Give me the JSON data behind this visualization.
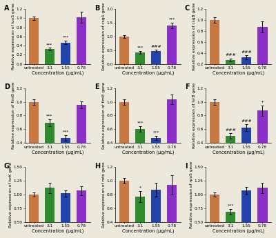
{
  "panels": [
    {
      "label": "A",
      "ylabel": "Relative expression of luxS gene",
      "ylim": [
        0,
        1.2
      ],
      "yticks": [
        0.0,
        0.2,
        0.4,
        0.6,
        0.8,
        1.0,
        1.2
      ],
      "values": [
        1.0,
        0.32,
        0.47,
        1.02
      ],
      "errors": [
        0.04,
        0.03,
        0.04,
        0.12
      ],
      "colors": [
        "#C87941",
        "#2E8B2E",
        "#2244AA",
        "#8B2FC8"
      ],
      "sig": [
        "",
        "***",
        "***",
        ""
      ],
      "sig_colors": [
        "k",
        "k",
        "k",
        "k"
      ]
    },
    {
      "label": "B",
      "ylabel": "Relative expression of csgA gene",
      "ylim": [
        0,
        2.0
      ],
      "yticks": [
        0.0,
        0.5,
        1.0,
        1.5,
        2.0
      ],
      "values": [
        1.0,
        0.42,
        0.48,
        1.4
      ],
      "errors": [
        0.05,
        0.04,
        0.04,
        0.1
      ],
      "colors": [
        "#C87941",
        "#2E8B2E",
        "#2244AA",
        "#8B2FC8"
      ],
      "sig": [
        "",
        "***",
        "###",
        "***"
      ],
      "sig_colors": [
        "k",
        "k",
        "k",
        "k"
      ]
    },
    {
      "label": "C",
      "ylabel": "Relative expression of csgB gene",
      "ylim": [
        0.2,
        1.2
      ],
      "yticks": [
        0.2,
        0.4,
        0.6,
        0.8,
        1.0,
        1.2
      ],
      "values": [
        1.0,
        0.27,
        0.32,
        0.88
      ],
      "errors": [
        0.05,
        0.03,
        0.04,
        0.1
      ],
      "colors": [
        "#C87941",
        "#2E8B2E",
        "#2244AA",
        "#8B2FC8"
      ],
      "sig": [
        "",
        "###",
        "###",
        ""
      ],
      "sig_colors": [
        "k",
        "k",
        "k",
        "k"
      ]
    },
    {
      "label": "D",
      "ylabel": "Relative expression of fimB gene",
      "ylim": [
        0.4,
        1.2
      ],
      "yticks": [
        0.4,
        0.6,
        0.8,
        1.0,
        1.2
      ],
      "values": [
        1.0,
        0.69,
        0.47,
        0.96
      ],
      "errors": [
        0.04,
        0.05,
        0.04,
        0.05
      ],
      "colors": [
        "#C87941",
        "#2E8B2E",
        "#2244AA",
        "#8B2FC8"
      ],
      "sig": [
        "",
        "***",
        "***",
        ""
      ],
      "sig_colors": [
        "k",
        "k",
        "k",
        "k"
      ]
    },
    {
      "label": "E",
      "ylabel": "Relative expression of fimE gene",
      "ylim": [
        0.4,
        1.2
      ],
      "yticks": [
        0.4,
        0.6,
        0.8,
        1.0,
        1.2
      ],
      "values": [
        1.0,
        0.6,
        0.47,
        1.04
      ],
      "errors": [
        0.04,
        0.04,
        0.03,
        0.07
      ],
      "colors": [
        "#C87941",
        "#2E8B2E",
        "#2244AA",
        "#8B2FC8"
      ],
      "sig": [
        "",
        "***",
        "***",
        ""
      ],
      "sig_colors": [
        "k",
        "k",
        "k",
        "k"
      ]
    },
    {
      "label": "F",
      "ylabel": "Relative expression of lsrB gene",
      "ylim": [
        0.4,
        1.2
      ],
      "yticks": [
        0.4,
        0.6,
        0.8,
        1.0,
        1.2
      ],
      "values": [
        1.0,
        0.5,
        0.62,
        0.87
      ],
      "errors": [
        0.04,
        0.04,
        0.05,
        0.08
      ],
      "colors": [
        "#C87941",
        "#2E8B2E",
        "#2244AA",
        "#8B2FC8"
      ],
      "sig": [
        "",
        "###",
        "###",
        "+"
      ],
      "sig_colors": [
        "k",
        "k",
        "k",
        "k"
      ]
    },
    {
      "label": "G",
      "ylabel": "Relative expression of lsrK gene",
      "ylim": [
        0.5,
        1.5
      ],
      "yticks": [
        0.5,
        0.75,
        1.0,
        1.25,
        1.5
      ],
      "values": [
        1.0,
        1.12,
        1.02,
        1.07
      ],
      "errors": [
        0.04,
        0.1,
        0.06,
        0.08
      ],
      "colors": [
        "#C87941",
        "#2E8B2E",
        "#2244AA",
        "#8B2FC8"
      ],
      "sig": [
        "",
        "",
        "",
        ""
      ],
      "sig_colors": [
        "k",
        "k",
        "k",
        "k"
      ]
    },
    {
      "label": "H",
      "ylabel": "Relative expression of mtn gene",
      "ylim": [
        0.4,
        1.2
      ],
      "yticks": [
        0.4,
        0.6,
        0.8,
        1.0,
        1.2
      ],
      "values": [
        1.0,
        0.77,
        0.87,
        0.94
      ],
      "errors": [
        0.04,
        0.08,
        0.1,
        0.14
      ],
      "colors": [
        "#C87941",
        "#2E8B2E",
        "#2244AA",
        "#8B2FC8"
      ],
      "sig": [
        "",
        "*",
        "",
        ""
      ],
      "sig_colors": [
        "k",
        "k",
        "k",
        "k"
      ]
    },
    {
      "label": "I",
      "ylabel": "Relative expression of rpoS gene",
      "ylim": [
        0.5,
        1.5
      ],
      "yticks": [
        0.5,
        0.75,
        1.0,
        1.25,
        1.5
      ],
      "values": [
        1.0,
        0.68,
        1.07,
        1.12
      ],
      "errors": [
        0.04,
        0.05,
        0.07,
        0.09
      ],
      "colors": [
        "#C87941",
        "#2E8B2E",
        "#2244AA",
        "#8B2FC8"
      ],
      "sig": [
        "",
        "***",
        "",
        ""
      ],
      "sig_colors": [
        "k",
        "k",
        "k",
        "k"
      ]
    }
  ],
  "xtick_labels": [
    "untreated",
    "3.1",
    "1.55",
    "0.78"
  ],
  "xlabel": "Concentration (μg/mL)",
  "background_color": "#EDE8DC",
  "bar_width": 0.62,
  "sig_fontsize": 4.5,
  "label_fontsize": 4.8,
  "tick_fontsize": 4.2,
  "panel_label_fontsize": 7.0,
  "ylabel_fontsize": 4.2
}
